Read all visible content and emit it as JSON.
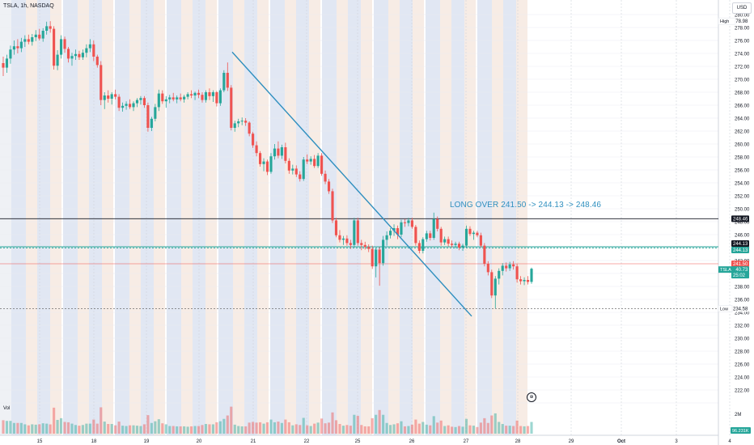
{
  "header": {
    "symbol_line": "TSLA, 1h, NASDAQ",
    "currency": "USD"
  },
  "annotation": {
    "text": "LONG OVER 241.50 -> 244.13 -> 248.46"
  },
  "volume_pane": {
    "label": "Vol",
    "axis_label": "2M",
    "last_volume": "96.231K"
  },
  "colors": {
    "up": "#26a69a",
    "down": "#ef5350",
    "trendline": "#2f8fbf",
    "level_line": "#131722",
    "target_line": "#26a69a",
    "entry_line": "#ef5350",
    "band_blue": "#c9d3ea",
    "band_orange": "#f1ddcf"
  },
  "chart_data": {
    "type": "candlestick",
    "symbol": "TSLA",
    "interval": "1h",
    "exchange": "NASDAQ",
    "y_axis": {
      "min": 220,
      "max": 280,
      "step": 2,
      "tick_labels": [
        "280.00",
        "278.00",
        "276.00",
        "274.00",
        "272.00",
        "270.00",
        "268.00",
        "266.00",
        "264.00",
        "262.00",
        "260.00",
        "258.00",
        "256.00",
        "254.00",
        "252.00",
        "250.00",
        "248.00",
        "246.00",
        "244.00",
        "242.00",
        "240.00",
        "238.00",
        "236.00",
        "234.00",
        "232.00",
        "230.00",
        "228.00",
        "226.00",
        "224.00",
        "222.00"
      ]
    },
    "x_axis": {
      "tick_labels": [
        "15",
        "18",
        "19",
        "20",
        "21",
        "22",
        "25",
        "26",
        "27",
        "28",
        "29",
        "Oct",
        "3",
        "4"
      ]
    },
    "price_labels": [
      {
        "label": "High",
        "value": "278.98"
      },
      {
        "label": "",
        "value": "248.46"
      },
      {
        "label": "",
        "value": "244.13"
      },
      {
        "label": "",
        "value": "244.13"
      },
      {
        "label": "",
        "value": "241.50"
      },
      {
        "label": "TSLA",
        "value": "240.73",
        "sub": "25:02"
      },
      {
        "label": "Low",
        "value": "234.58"
      }
    ],
    "horizontal_lines": [
      {
        "name": "target_2",
        "value": 248.46
      },
      {
        "name": "target_1",
        "value": 244.13
      },
      {
        "name": "entry",
        "value": 241.5
      },
      {
        "name": "low",
        "value": 234.58
      }
    ],
    "trendline": {
      "from": {
        "value": 274.2
      },
      "to": {
        "value": 233.4
      }
    },
    "candles": [
      {
        "o": 272.5,
        "h": 273.5,
        "l": 270.5,
        "c": 271.8
      },
      {
        "o": 271.8,
        "h": 273.8,
        "l": 271.0,
        "c": 273.2
      },
      {
        "o": 273.2,
        "h": 275.2,
        "l": 272.4,
        "c": 274.6
      },
      {
        "o": 274.6,
        "h": 276.0,
        "l": 273.8,
        "c": 275.1
      },
      {
        "o": 275.1,
        "h": 276.2,
        "l": 274.0,
        "c": 274.8
      },
      {
        "o": 274.8,
        "h": 276.4,
        "l": 274.2,
        "c": 275.8
      },
      {
        "o": 275.8,
        "h": 276.8,
        "l": 275.0,
        "c": 276.2
      },
      {
        "o": 276.2,
        "h": 276.9,
        "l": 275.4,
        "c": 275.8
      },
      {
        "o": 275.8,
        "h": 277.0,
        "l": 275.2,
        "c": 276.5
      },
      {
        "o": 276.5,
        "h": 277.6,
        "l": 275.9,
        "c": 276.9
      },
      {
        "o": 276.9,
        "h": 277.8,
        "l": 276.0,
        "c": 276.3
      },
      {
        "o": 276.3,
        "h": 277.9,
        "l": 275.8,
        "c": 277.5
      },
      {
        "o": 277.5,
        "h": 278.9,
        "l": 276.9,
        "c": 278.2
      },
      {
        "o": 278.2,
        "h": 278.98,
        "l": 277.2,
        "c": 277.8
      },
      {
        "o": 277.8,
        "h": 278.2,
        "l": 271.5,
        "c": 272.1
      },
      {
        "o": 272.1,
        "h": 274.5,
        "l": 271.4,
        "c": 273.8
      },
      {
        "o": 273.8,
        "h": 276.8,
        "l": 273.2,
        "c": 276.2
      },
      {
        "o": 276.2,
        "h": 276.6,
        "l": 274.1,
        "c": 274.7
      },
      {
        "o": 274.7,
        "h": 275.0,
        "l": 272.6,
        "c": 273.2
      },
      {
        "o": 273.2,
        "h": 274.1,
        "l": 272.1,
        "c": 273.6
      },
      {
        "o": 273.6,
        "h": 274.6,
        "l": 273.0,
        "c": 273.9
      },
      {
        "o": 273.9,
        "h": 274.4,
        "l": 273.0,
        "c": 273.4
      },
      {
        "o": 273.4,
        "h": 274.6,
        "l": 273.0,
        "c": 274.1
      },
      {
        "o": 274.1,
        "h": 275.4,
        "l": 273.4,
        "c": 274.8
      },
      {
        "o": 274.8,
        "h": 276.2,
        "l": 274.2,
        "c": 275.4
      },
      {
        "o": 275.4,
        "h": 276.0,
        "l": 272.8,
        "c": 273.5
      },
      {
        "o": 273.5,
        "h": 273.8,
        "l": 271.8,
        "c": 272.2
      },
      {
        "o": 272.2,
        "h": 272.8,
        "l": 266.0,
        "c": 266.8
      },
      {
        "o": 266.8,
        "h": 268.0,
        "l": 265.4,
        "c": 267.5
      },
      {
        "o": 267.5,
        "h": 268.3,
        "l": 266.4,
        "c": 267.0
      },
      {
        "o": 267.0,
        "h": 268.0,
        "l": 266.1,
        "c": 267.7
      },
      {
        "o": 267.7,
        "h": 268.4,
        "l": 266.9,
        "c": 267.3
      },
      {
        "o": 267.3,
        "h": 267.7,
        "l": 265.1,
        "c": 265.6
      },
      {
        "o": 265.6,
        "h": 266.4,
        "l": 265.0,
        "c": 265.9
      },
      {
        "o": 265.9,
        "h": 266.6,
        "l": 265.3,
        "c": 266.2
      },
      {
        "o": 266.2,
        "h": 266.9,
        "l": 265.4,
        "c": 265.7
      },
      {
        "o": 265.7,
        "h": 266.6,
        "l": 265.1,
        "c": 266.3
      },
      {
        "o": 266.3,
        "h": 267.1,
        "l": 265.7,
        "c": 266.8
      },
      {
        "o": 266.8,
        "h": 267.4,
        "l": 266.1,
        "c": 267.1
      },
      {
        "o": 267.1,
        "h": 267.4,
        "l": 265.6,
        "c": 266.0
      },
      {
        "o": 266.0,
        "h": 266.4,
        "l": 261.9,
        "c": 262.5
      },
      {
        "o": 262.5,
        "h": 264.2,
        "l": 262.0,
        "c": 263.9
      },
      {
        "o": 263.9,
        "h": 266.2,
        "l": 263.5,
        "c": 265.7
      },
      {
        "o": 265.7,
        "h": 268.4,
        "l": 265.1,
        "c": 267.8
      },
      {
        "o": 267.8,
        "h": 268.3,
        "l": 266.2,
        "c": 266.6
      },
      {
        "o": 266.6,
        "h": 267.4,
        "l": 265.6,
        "c": 266.9
      },
      {
        "o": 266.9,
        "h": 267.6,
        "l": 266.3,
        "c": 267.2
      },
      {
        "o": 267.2,
        "h": 267.9,
        "l": 266.6,
        "c": 266.9
      },
      {
        "o": 266.9,
        "h": 267.5,
        "l": 266.3,
        "c": 267.2
      },
      {
        "o": 267.2,
        "h": 267.8,
        "l": 266.6,
        "c": 266.9
      },
      {
        "o": 266.9,
        "h": 267.6,
        "l": 266.4,
        "c": 267.3
      },
      {
        "o": 267.3,
        "h": 268.0,
        "l": 266.9,
        "c": 267.7
      },
      {
        "o": 267.7,
        "h": 268.3,
        "l": 267.1,
        "c": 267.5
      },
      {
        "o": 267.5,
        "h": 268.1,
        "l": 266.8,
        "c": 267.9
      },
      {
        "o": 267.9,
        "h": 268.4,
        "l": 267.1,
        "c": 267.6
      },
      {
        "o": 267.6,
        "h": 268.0,
        "l": 266.4,
        "c": 266.8
      },
      {
        "o": 266.8,
        "h": 268.3,
        "l": 266.4,
        "c": 268.0
      },
      {
        "o": 268.0,
        "h": 268.6,
        "l": 266.8,
        "c": 267.4
      },
      {
        "o": 267.4,
        "h": 268.3,
        "l": 266.5,
        "c": 268.0
      },
      {
        "o": 268.0,
        "h": 268.2,
        "l": 265.8,
        "c": 266.3
      },
      {
        "o": 266.3,
        "h": 268.6,
        "l": 265.9,
        "c": 268.3
      },
      {
        "o": 268.3,
        "h": 271.4,
        "l": 268.0,
        "c": 271.0
      },
      {
        "o": 271.0,
        "h": 272.6,
        "l": 268.2,
        "c": 268.7
      },
      {
        "o": 268.7,
        "h": 269.1,
        "l": 262.1,
        "c": 262.5
      },
      {
        "o": 262.5,
        "h": 263.6,
        "l": 261.9,
        "c": 263.2
      },
      {
        "o": 263.2,
        "h": 263.9,
        "l": 262.6,
        "c": 263.5
      },
      {
        "o": 263.5,
        "h": 264.1,
        "l": 262.9,
        "c": 263.6
      },
      {
        "o": 263.6,
        "h": 264.0,
        "l": 262.8,
        "c": 263.3
      },
      {
        "o": 263.3,
        "h": 263.5,
        "l": 261.2,
        "c": 261.6
      },
      {
        "o": 261.6,
        "h": 261.9,
        "l": 259.4,
        "c": 259.8
      },
      {
        "o": 259.8,
        "h": 260.4,
        "l": 258.1,
        "c": 258.6
      },
      {
        "o": 258.6,
        "h": 258.9,
        "l": 256.5,
        "c": 256.9
      },
      {
        "o": 256.9,
        "h": 257.8,
        "l": 255.8,
        "c": 257.3
      },
      {
        "o": 257.3,
        "h": 257.6,
        "l": 255.2,
        "c": 255.7
      },
      {
        "o": 255.7,
        "h": 258.6,
        "l": 255.4,
        "c": 258.1
      },
      {
        "o": 258.1,
        "h": 260.0,
        "l": 257.6,
        "c": 259.3
      },
      {
        "o": 259.3,
        "h": 260.4,
        "l": 257.8,
        "c": 258.2
      },
      {
        "o": 258.2,
        "h": 259.9,
        "l": 257.7,
        "c": 259.5
      },
      {
        "o": 259.5,
        "h": 260.2,
        "l": 257.0,
        "c": 257.4
      },
      {
        "o": 257.4,
        "h": 257.8,
        "l": 255.4,
        "c": 255.9
      },
      {
        "o": 255.9,
        "h": 256.8,
        "l": 255.3,
        "c": 256.2
      },
      {
        "o": 256.2,
        "h": 256.7,
        "l": 254.9,
        "c": 255.3
      },
      {
        "o": 255.3,
        "h": 255.8,
        "l": 254.2,
        "c": 254.6
      },
      {
        "o": 254.6,
        "h": 258.0,
        "l": 254.3,
        "c": 257.6
      },
      {
        "o": 257.6,
        "h": 258.4,
        "l": 256.9,
        "c": 257.3
      },
      {
        "o": 257.3,
        "h": 258.1,
        "l": 256.8,
        "c": 257.7
      },
      {
        "o": 257.7,
        "h": 258.3,
        "l": 256.3,
        "c": 256.6
      },
      {
        "o": 256.6,
        "h": 258.6,
        "l": 256.3,
        "c": 258.2
      },
      {
        "o": 258.2,
        "h": 258.6,
        "l": 255.1,
        "c": 255.4
      },
      {
        "o": 255.4,
        "h": 255.9,
        "l": 253.8,
        "c": 254.2
      },
      {
        "o": 254.2,
        "h": 254.6,
        "l": 252.3,
        "c": 252.7
      },
      {
        "o": 252.7,
        "h": 253.1,
        "l": 247.8,
        "c": 248.2
      },
      {
        "o": 248.2,
        "h": 248.6,
        "l": 245.6,
        "c": 245.9
      },
      {
        "o": 245.9,
        "h": 246.7,
        "l": 244.8,
        "c": 245.2
      },
      {
        "o": 245.2,
        "h": 245.8,
        "l": 244.4,
        "c": 245.4
      },
      {
        "o": 245.4,
        "h": 245.9,
        "l": 244.3,
        "c": 244.7
      },
      {
        "o": 244.7,
        "h": 245.2,
        "l": 243.8,
        "c": 244.4
      },
      {
        "o": 244.4,
        "h": 248.6,
        "l": 244.0,
        "c": 248.2
      },
      {
        "o": 248.2,
        "h": 248.6,
        "l": 244.3,
        "c": 244.7
      },
      {
        "o": 244.7,
        "h": 245.2,
        "l": 243.6,
        "c": 244.4
      },
      {
        "o": 244.4,
        "h": 244.9,
        "l": 243.7,
        "c": 244.1
      },
      {
        "o": 244.1,
        "h": 244.5,
        "l": 243.3,
        "c": 243.8
      },
      {
        "o": 243.8,
        "h": 244.3,
        "l": 240.7,
        "c": 241.1
      },
      {
        "o": 241.1,
        "h": 244.0,
        "l": 239.4,
        "c": 243.7
      },
      {
        "o": 243.7,
        "h": 244.1,
        "l": 238.1,
        "c": 241.6
      },
      {
        "o": 241.6,
        "h": 245.8,
        "l": 241.2,
        "c": 245.2
      },
      {
        "o": 245.2,
        "h": 246.5,
        "l": 244.3,
        "c": 245.9
      },
      {
        "o": 245.9,
        "h": 247.0,
        "l": 245.4,
        "c": 246.6
      },
      {
        "o": 246.6,
        "h": 247.6,
        "l": 245.8,
        "c": 247.0
      },
      {
        "o": 247.0,
        "h": 247.4,
        "l": 245.3,
        "c": 246.0
      },
      {
        "o": 246.0,
        "h": 248.3,
        "l": 245.6,
        "c": 247.9
      },
      {
        "o": 247.9,
        "h": 248.4,
        "l": 247.2,
        "c": 247.8
      },
      {
        "o": 247.8,
        "h": 248.6,
        "l": 247.3,
        "c": 248.2
      },
      {
        "o": 248.2,
        "h": 248.6,
        "l": 246.9,
        "c": 247.2
      },
      {
        "o": 247.2,
        "h": 247.5,
        "l": 244.3,
        "c": 244.7
      },
      {
        "o": 244.7,
        "h": 245.1,
        "l": 243.1,
        "c": 243.5
      },
      {
        "o": 243.5,
        "h": 245.6,
        "l": 243.1,
        "c": 245.3
      },
      {
        "o": 245.3,
        "h": 246.6,
        "l": 244.9,
        "c": 246.2
      },
      {
        "o": 246.2,
        "h": 246.6,
        "l": 245.1,
        "c": 245.5
      },
      {
        "o": 245.5,
        "h": 249.4,
        "l": 245.2,
        "c": 248.4
      },
      {
        "o": 248.4,
        "h": 248.8,
        "l": 246.5,
        "c": 246.9
      },
      {
        "o": 246.9,
        "h": 247.2,
        "l": 244.3,
        "c": 244.8
      },
      {
        "o": 244.8,
        "h": 245.7,
        "l": 244.4,
        "c": 245.3
      },
      {
        "o": 245.3,
        "h": 245.7,
        "l": 244.2,
        "c": 244.6
      },
      {
        "o": 244.6,
        "h": 245.1,
        "l": 244.0,
        "c": 244.4
      },
      {
        "o": 244.4,
        "h": 244.9,
        "l": 243.9,
        "c": 244.6
      },
      {
        "o": 244.6,
        "h": 244.9,
        "l": 243.6,
        "c": 244.0
      },
      {
        "o": 244.0,
        "h": 244.6,
        "l": 243.5,
        "c": 244.3
      },
      {
        "o": 244.3,
        "h": 247.4,
        "l": 244.0,
        "c": 246.9
      },
      {
        "o": 246.9,
        "h": 247.3,
        "l": 245.8,
        "c": 246.1
      },
      {
        "o": 246.1,
        "h": 246.6,
        "l": 245.2,
        "c": 246.3
      },
      {
        "o": 246.3,
        "h": 246.6,
        "l": 245.6,
        "c": 245.9
      },
      {
        "o": 245.9,
        "h": 246.3,
        "l": 244.0,
        "c": 244.3
      },
      {
        "o": 244.3,
        "h": 244.7,
        "l": 241.1,
        "c": 241.5
      },
      {
        "o": 241.5,
        "h": 241.9,
        "l": 239.7,
        "c": 240.2
      },
      {
        "o": 240.2,
        "h": 240.6,
        "l": 236.2,
        "c": 236.6
      },
      {
        "o": 236.6,
        "h": 239.6,
        "l": 234.58,
        "c": 239.2
      },
      {
        "o": 239.2,
        "h": 240.8,
        "l": 238.3,
        "c": 240.4
      },
      {
        "o": 240.4,
        "h": 241.6,
        "l": 239.7,
        "c": 241.2
      },
      {
        "o": 241.2,
        "h": 241.7,
        "l": 240.3,
        "c": 240.8
      },
      {
        "o": 240.8,
        "h": 241.8,
        "l": 240.4,
        "c": 241.4
      },
      {
        "o": 241.4,
        "h": 241.9,
        "l": 240.6,
        "c": 241.1
      },
      {
        "o": 241.1,
        "h": 241.5,
        "l": 238.6,
        "c": 239.1
      },
      {
        "o": 239.1,
        "h": 239.6,
        "l": 238.3,
        "c": 238.8
      },
      {
        "o": 238.8,
        "h": 239.4,
        "l": 238.2,
        "c": 239.0
      },
      {
        "o": 239.0,
        "h": 239.6,
        "l": 238.3,
        "c": 238.7
      },
      {
        "o": 238.7,
        "h": 240.9,
        "l": 238.4,
        "c": 240.73
      }
    ]
  }
}
